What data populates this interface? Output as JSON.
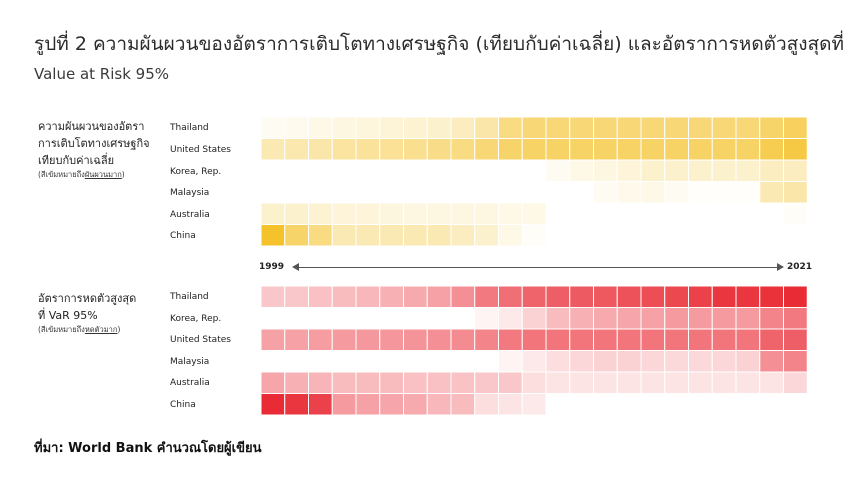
{
  "title": "รูปที่ 2 ความผันผวนของอัตราการเติบโตทางเศรษฐกิจ (เทียบกับค่าเฉลี่ย) และอัตราการหดตัวสูงสุดที่",
  "subtitle": "Value at Risk 95%",
  "source": "ที่มา: World Bank คำนวณโดยผู้เขียน",
  "axis": {
    "start_label": "1999",
    "end_label": "2021"
  },
  "colors": {
    "volatility": "#f2b705",
    "var": "#e8202a"
  },
  "chart_data": [
    {
      "type": "heatmap",
      "title": "",
      "panel_label_lines": [
        "ความผันผวนของอัตรา",
        "การเติบโตทางเศรษฐกิจ",
        "เทียบกับค่าเฉลี่ย"
      ],
      "note_prefix": "(สีเข้มหมายถึง",
      "note_emphasis": "ผันผวนมาก",
      "note_suffix": ")",
      "color": "#f2b705",
      "x_range": [
        1999,
        2021
      ],
      "rows": [
        {
          "name": "Thailand",
          "values": [
            0.05,
            0.07,
            0.1,
            0.12,
            0.14,
            0.16,
            0.18,
            0.2,
            0.25,
            0.35,
            0.5,
            0.55,
            0.55,
            0.55,
            0.55,
            0.55,
            0.55,
            0.55,
            0.55,
            0.55,
            0.55,
            0.6,
            0.65
          ]
        },
        {
          "name": "United States",
          "values": [
            0.3,
            0.32,
            0.35,
            0.38,
            0.4,
            0.42,
            0.45,
            0.48,
            0.5,
            0.55,
            0.6,
            0.62,
            0.62,
            0.62,
            0.62,
            0.62,
            0.62,
            0.62,
            0.62,
            0.62,
            0.62,
            0.7,
            0.75
          ]
        },
        {
          "name": "Korea, Rep.",
          "values": [
            0,
            0,
            0,
            0,
            0,
            0,
            0,
            0,
            0,
            0,
            0,
            0,
            0.05,
            0.1,
            0.12,
            0.15,
            0.2,
            0.2,
            0.2,
            0.2,
            0.2,
            0.25,
            0.25
          ]
        },
        {
          "name": "Malaysia",
          "values": [
            0,
            0,
            0,
            0,
            0,
            0,
            0,
            0,
            0,
            0,
            0,
            0,
            0,
            0,
            0.05,
            0.08,
            0.1,
            0.05,
            0.02,
            0.02,
            0.02,
            0.3,
            0.35
          ]
        },
        {
          "name": "Australia",
          "values": [
            0.2,
            0.2,
            0.18,
            0.15,
            0.15,
            0.13,
            0.12,
            0.12,
            0.12,
            0.12,
            0.1,
            0.1,
            0,
            0,
            0,
            0,
            0,
            0,
            0,
            0,
            0,
            0,
            0.03
          ]
        },
        {
          "name": "China",
          "values": [
            0.85,
            0.6,
            0.5,
            0.3,
            0.3,
            0.3,
            0.3,
            0.3,
            0.25,
            0.2,
            0.1,
            0.03,
            0,
            0,
            0,
            0,
            0,
            0,
            0,
            0,
            0,
            0,
            0
          ]
        }
      ]
    },
    {
      "type": "heatmap",
      "title": "",
      "panel_label_lines": [
        "อัตราการหดตัวสูงสุด",
        "ที่ VaR 95%"
      ],
      "note_prefix": "(สีเข้มหมายถึง",
      "note_emphasis": "หดตัวมาก",
      "note_suffix": ")",
      "color": "#e8202a",
      "x_range": [
        1999,
        2021
      ],
      "rows": [
        {
          "name": "Thailand",
          "values": [
            0.25,
            0.25,
            0.28,
            0.3,
            0.32,
            0.35,
            0.38,
            0.42,
            0.5,
            0.6,
            0.65,
            0.7,
            0.72,
            0.74,
            0.75,
            0.78,
            0.8,
            0.82,
            0.85,
            0.9,
            0.9,
            0.92,
            0.95
          ]
        },
        {
          "name": "Korea, Rep.",
          "values": [
            0,
            0,
            0,
            0,
            0,
            0,
            0,
            0,
            0,
            0.05,
            0.1,
            0.2,
            0.3,
            0.35,
            0.38,
            0.4,
            0.42,
            0.45,
            0.45,
            0.45,
            0.45,
            0.55,
            0.6
          ]
        },
        {
          "name": "United States",
          "values": [
            0.42,
            0.42,
            0.44,
            0.45,
            0.46,
            0.47,
            0.48,
            0.5,
            0.52,
            0.55,
            0.6,
            0.62,
            0.62,
            0.62,
            0.62,
            0.62,
            0.62,
            0.62,
            0.62,
            0.62,
            0.62,
            0.7,
            0.72
          ]
        },
        {
          "name": "Malaysia",
          "values": [
            0,
            0,
            0,
            0,
            0,
            0,
            0,
            0,
            0,
            0,
            0.05,
            0.1,
            0.15,
            0.18,
            0.2,
            0.2,
            0.18,
            0.17,
            0.17,
            0.18,
            0.2,
            0.5,
            0.55
          ]
        },
        {
          "name": "Australia",
          "values": [
            0.4,
            0.35,
            0.33,
            0.3,
            0.3,
            0.3,
            0.28,
            0.28,
            0.27,
            0.25,
            0.25,
            0.15,
            0.12,
            0.12,
            0.12,
            0.12,
            0.12,
            0.12,
            0.12,
            0.12,
            0.12,
            0.12,
            0.18
          ]
        },
        {
          "name": "China",
          "values": [
            0.95,
            0.9,
            0.85,
            0.45,
            0.42,
            0.4,
            0.38,
            0.32,
            0.3,
            0.15,
            0.12,
            0.1,
            0,
            0,
            0,
            0,
            0,
            0,
            0,
            0,
            0,
            0,
            0
          ]
        }
      ]
    }
  ]
}
